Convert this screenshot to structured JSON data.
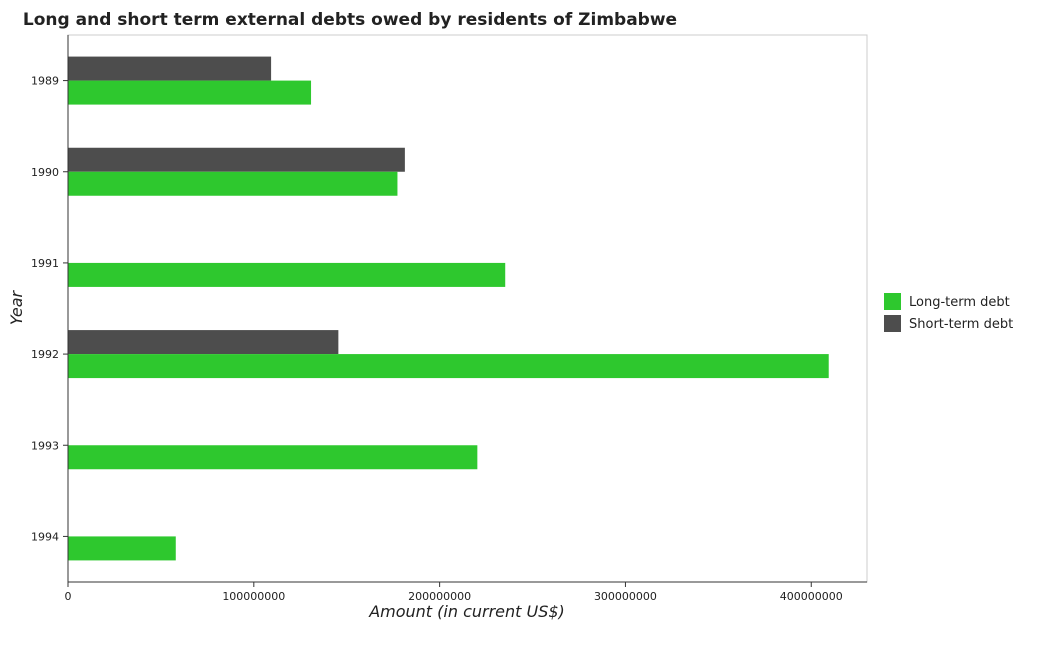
{
  "chart_data": {
    "type": "bar",
    "orientation": "horizontal",
    "title": "Long and short term external debts owed by residents of Zimbabwe",
    "xlabel": "Amount (in current US$)",
    "ylabel": "Year",
    "categories": [
      "1989",
      "1990",
      "1991",
      "1992",
      "1993",
      "1994"
    ],
    "series": [
      {
        "name": "Long-term debt",
        "color": "#2ec82e",
        "values": [
          130800000,
          177300000,
          235300000,
          409400000,
          220300000,
          58000000
        ]
      },
      {
        "name": "Short-term debt",
        "color": "#4d4d4d",
        "values": [
          109300000,
          181300000,
          0,
          145500000,
          0,
          0
        ]
      }
    ],
    "xlim": [
      0,
      430000000
    ],
    "xticks": [
      0,
      100000000,
      200000000,
      300000000,
      400000000
    ],
    "xtick_labels": [
      "0",
      "100000000",
      "200000000",
      "300000000",
      "400000000"
    ],
    "grid": false,
    "legend_position": "right"
  }
}
